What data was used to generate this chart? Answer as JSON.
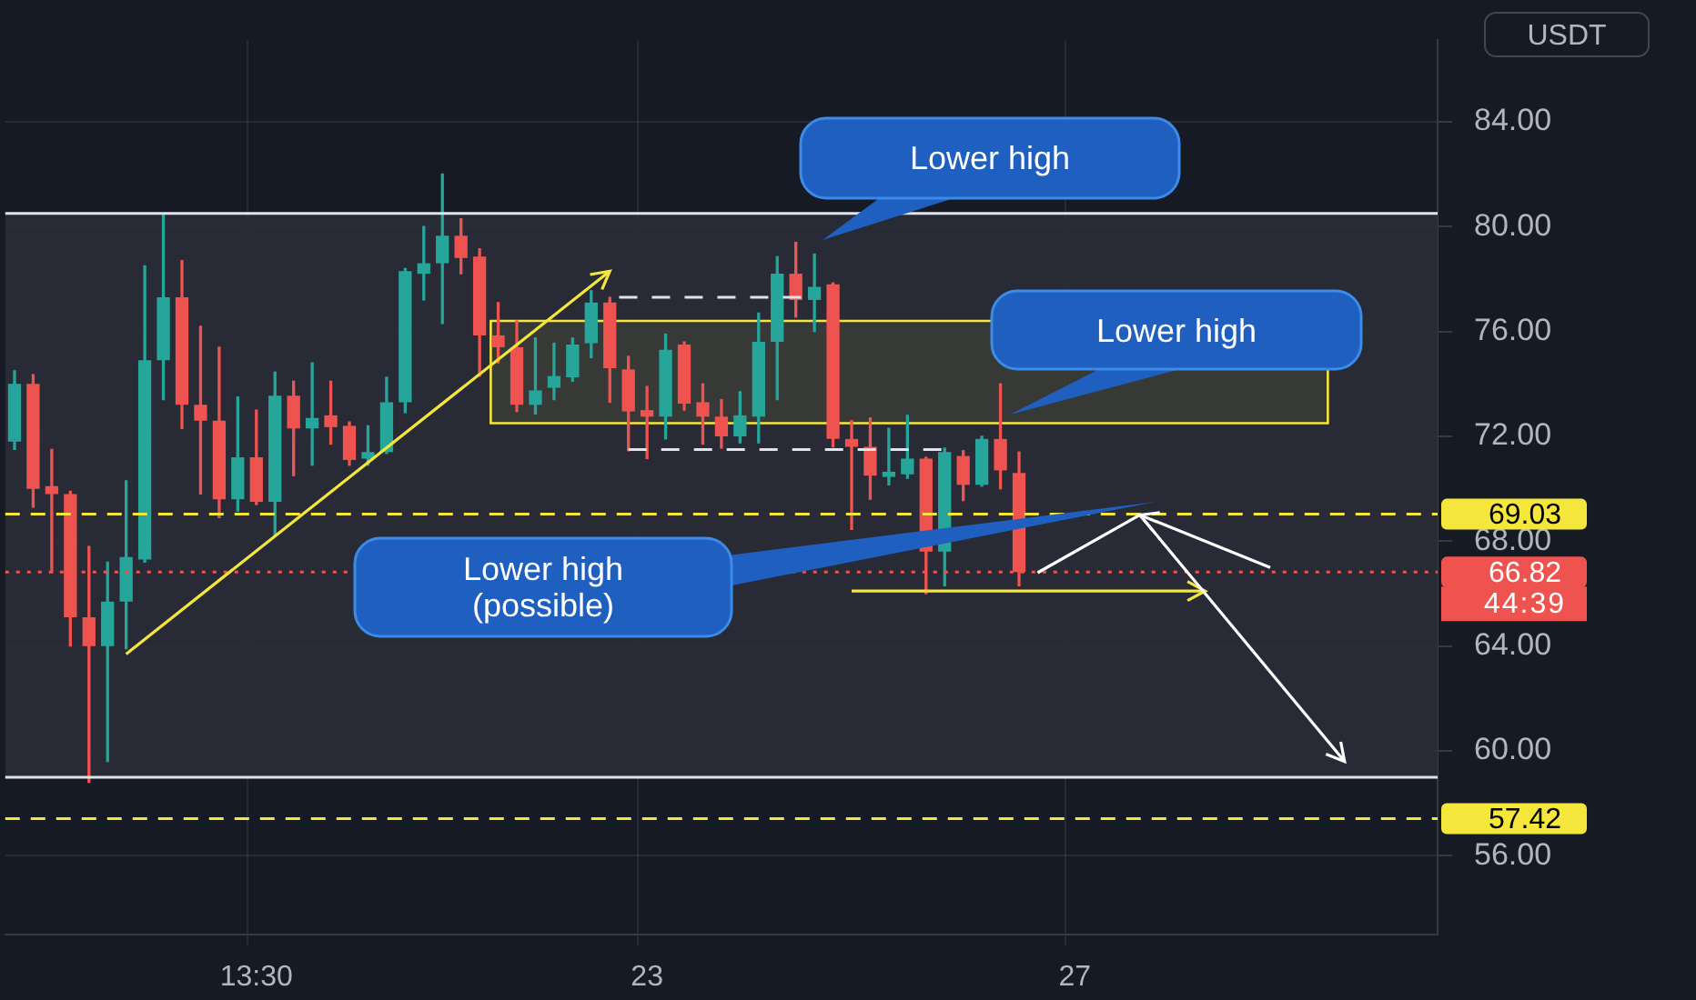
{
  "chart_data": {
    "type": "candlestick",
    "ylabel": "USDT",
    "categories": [
      null,
      null,
      null,
      null,
      null,
      null,
      null,
      null,
      null,
      null,
      null,
      null,
      null,
      "13:30",
      null,
      null,
      null,
      null,
      null,
      null,
      null,
      null,
      null,
      null,
      null,
      null,
      null,
      null,
      null,
      null,
      null,
      null,
      null,
      null,
      "23",
      null,
      null,
      null,
      null,
      null,
      null,
      null,
      null,
      null,
      null,
      null,
      null,
      null,
      null,
      null,
      null,
      null,
      null,
      null,
      null,
      null,
      null,
      "27",
      null,
      null,
      null,
      null,
      null,
      null,
      null,
      null,
      null,
      null,
      null,
      null,
      null,
      null,
      null,
      null,
      null,
      null,
      null
    ],
    "ohlc": [
      [
        71.8,
        74.5,
        71.5,
        74.0
      ],
      [
        74.0,
        74.35,
        69.3,
        70.0
      ],
      [
        70.1,
        71.5,
        66.8,
        69.8
      ],
      [
        69.8,
        69.9,
        64.0,
        65.1
      ],
      [
        65.1,
        67.8,
        58.8,
        64.0
      ],
      [
        64.0,
        67.2,
        59.6,
        65.7
      ],
      [
        65.7,
        70.3,
        63.9,
        67.4
      ],
      [
        67.3,
        78.5,
        67.2,
        74.9
      ],
      [
        74.9,
        80.5,
        73.4,
        77.3
      ],
      [
        77.3,
        78.7,
        72.3,
        73.2
      ],
      [
        73.2,
        76.2,
        69.8,
        72.6
      ],
      [
        72.6,
        75.4,
        68.9,
        69.6
      ],
      [
        69.6,
        73.5,
        69.15,
        71.2
      ],
      [
        71.2,
        73.0,
        69.4,
        69.5
      ],
      [
        69.5,
        74.45,
        68.2,
        73.55
      ],
      [
        73.55,
        74.1,
        70.5,
        72.3
      ],
      [
        72.3,
        74.8,
        70.9,
        72.7
      ],
      [
        72.8,
        74.1,
        71.7,
        72.35
      ],
      [
        72.4,
        72.55,
        70.9,
        71.1
      ],
      [
        71.15,
        72.4,
        70.9,
        71.4
      ],
      [
        71.4,
        74.25,
        71.35,
        73.3
      ],
      [
        73.3,
        78.4,
        72.9,
        78.3
      ],
      [
        78.2,
        80.0,
        77.2,
        78.6
      ],
      [
        78.6,
        82.0,
        76.3,
        79.65
      ],
      [
        79.65,
        80.3,
        78.2,
        78.8
      ],
      [
        78.85,
        79.15,
        74.3,
        75.85
      ],
      [
        75.85,
        77.1,
        74.8,
        75.4
      ],
      [
        75.4,
        76.4,
        72.95,
        73.2
      ],
      [
        73.2,
        75.75,
        72.85,
        73.75
      ],
      [
        73.85,
        75.55,
        73.4,
        74.3
      ],
      [
        74.25,
        75.75,
        74.1,
        75.5
      ],
      [
        75.55,
        77.55,
        75.0,
        77.1
      ],
      [
        77.1,
        77.3,
        73.3,
        74.6
      ],
      [
        74.55,
        75.05,
        71.45,
        72.95
      ],
      [
        73.0,
        73.9,
        71.15,
        72.75
      ],
      [
        72.75,
        75.9,
        71.9,
        75.3
      ],
      [
        75.5,
        75.6,
        73.0,
        73.25
      ],
      [
        73.3,
        74.0,
        71.7,
        72.75
      ],
      [
        72.75,
        73.4,
        71.55,
        72.0
      ],
      [
        72.0,
        73.7,
        71.75,
        72.8
      ],
      [
        72.75,
        76.7,
        71.75,
        75.6
      ],
      [
        75.6,
        78.85,
        73.4,
        78.2
      ],
      [
        78.2,
        79.4,
        76.55,
        77.2
      ],
      [
        77.2,
        78.95,
        76.0,
        77.7
      ],
      [
        77.8,
        77.85,
        71.6,
        71.9
      ],
      [
        71.9,
        72.6,
        68.45,
        71.6
      ],
      [
        71.6,
        72.7,
        69.6,
        70.5
      ],
      [
        70.45,
        72.3,
        70.15,
        70.65
      ],
      [
        70.55,
        72.8,
        70.4,
        71.15
      ],
      [
        71.15,
        71.2,
        66.0,
        67.6
      ],
      [
        67.6,
        71.55,
        66.3,
        71.4
      ],
      [
        71.25,
        71.45,
        69.55,
        70.15
      ],
      [
        70.15,
        72.0,
        70.1,
        71.9
      ],
      [
        71.9,
        74.0,
        70.0,
        70.7
      ],
      [
        70.6,
        71.4,
        66.3,
        66.82
      ],
      null,
      null,
      null,
      null,
      null,
      null,
      null,
      null,
      null,
      null,
      null,
      null,
      null,
      null,
      null,
      null,
      null,
      null,
      null,
      null,
      null,
      null
    ],
    "colors": [
      "#26a69a",
      "#ef5350",
      "#ef5350",
      "#ef5350",
      "#ef5350",
      "#26a69a",
      "#26a69a",
      "#26a69a",
      "#26a69a",
      "#ef5350",
      "#ef5350",
      "#ef5350",
      "#26a69a",
      "#ef5350",
      "#26a69a",
      "#ef5350",
      "#26a69a",
      "#ef5350",
      "#ef5350",
      "#26a69a",
      "#26a69a",
      "#26a69a",
      "#26a69a",
      "#26a69a",
      "#ef5350",
      "#ef5350",
      "#ef5350",
      "#ef5350",
      "#26a69a",
      "#26a69a",
      "#26a69a",
      "#26a69a",
      "#ef5350",
      "#ef5350",
      "#ef5350",
      "#26a69a",
      "#ef5350",
      "#ef5350",
      "#ef5350",
      "#26a69a",
      "#26a69a",
      "#26a69a",
      "#ef5350",
      "#26a69a",
      "#ef5350",
      "#ef5350",
      "#ef5350",
      "#26a69a",
      "#26a69a",
      "#ef5350",
      "#26a69a",
      "#ef5350",
      "#26a69a",
      "#ef5350",
      "#ef5350",
      null,
      null,
      null,
      null,
      null,
      null,
      null,
      null,
      null,
      null,
      null,
      null,
      null,
      null,
      null,
      null,
      null,
      null,
      null,
      null,
      null,
      null
    ],
    "ylim": [
      53,
      87.1
    ],
    "yticks": [
      {
        "value": 56,
        "label": "56.00"
      },
      {
        "value": 60,
        "label": "60.00"
      },
      {
        "value": 64,
        "label": "64.00"
      },
      {
        "value": 68,
        "label": "68.00"
      },
      {
        "value": 72,
        "label": "72.00"
      },
      {
        "value": 76,
        "label": "76.00"
      },
      {
        "value": 80,
        "label": "80.00"
      },
      {
        "value": 84,
        "label": "84.00"
      }
    ],
    "grid": true,
    "bands": [
      {
        "axis": "y",
        "from": 59.0,
        "to": 80.5,
        "color": "#2a2e39"
      },
      {
        "axis": "y",
        "from": 72.5,
        "to": 76.4,
        "color": "#f5e63b"
      }
    ],
    "ref_lines": [
      {
        "axis": "y",
        "value": 80.5,
        "label": null,
        "color": "#e0e3eb",
        "line_style": "solid"
      },
      {
        "axis": "y",
        "value": 59.0,
        "label": null,
        "color": "#e0e3eb",
        "line_style": "solid"
      },
      {
        "axis": "y",
        "value": 69.03,
        "label": "69.03",
        "color": "#f5e63b",
        "line_style": "dashed"
      },
      {
        "axis": "y",
        "value": 57.42,
        "label": "57.42",
        "color": "#f5e63b",
        "line_style": "dashed"
      },
      {
        "axis": "y",
        "value": 66.82,
        "label": "66.82",
        "color": "#ef5350",
        "line_style": "dotted"
      }
    ],
    "annotations": [
      "Lower high",
      "Lower high",
      "Lower high\n(possible)",
      "44:39"
    ]
  }
}
